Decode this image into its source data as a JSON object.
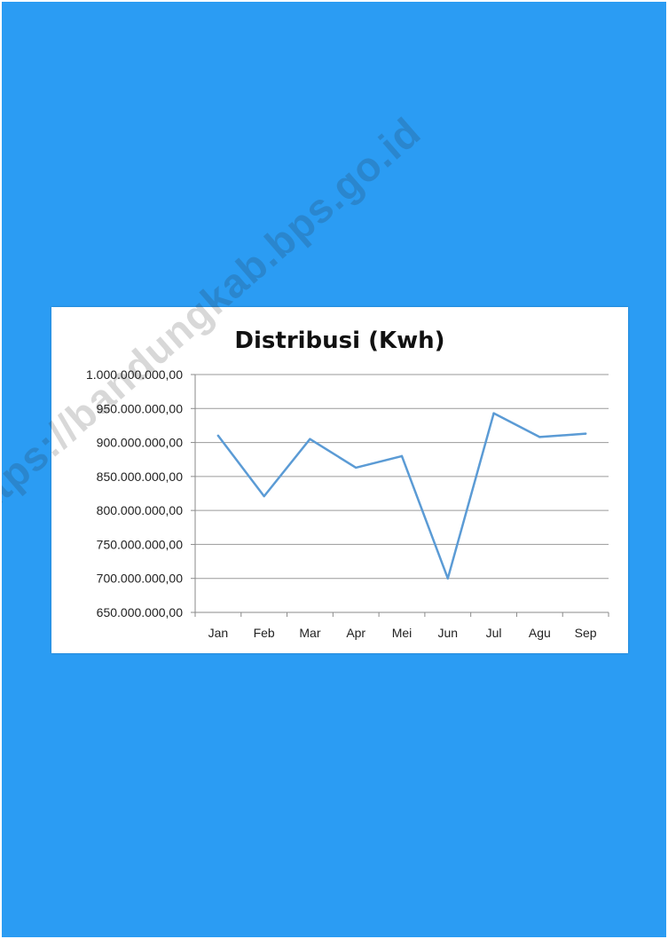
{
  "page": {
    "background_color": "#2b9cf3",
    "card_color": "#ffffff"
  },
  "watermark": {
    "text": "https://bandungkab.bps.go.id"
  },
  "chart_data": {
    "type": "line",
    "title": "Distribusi (Kwh)",
    "xlabel": "",
    "ylabel": "",
    "categories": [
      "Jan",
      "Feb",
      "Mar",
      "Apr",
      "Mei",
      "Jun",
      "Jul",
      "Agu",
      "Sep"
    ],
    "series": [
      {
        "values": [
          910000000,
          821000000,
          905000000,
          863000000,
          880000000,
          700000000,
          943000000,
          908000000,
          913000000
        ],
        "color": "#5b9bd5"
      }
    ],
    "ylim": [
      650000000,
      1000000000
    ],
    "ytick_labels": [
      "650.000.000,00",
      "700.000.000,00",
      "750.000.000,00",
      "800.000.000,00",
      "850.000.000,00",
      "900.000.000,00",
      "950.000.000,00",
      "1.000.000.000,00"
    ],
    "grid": true,
    "legend": "none"
  }
}
